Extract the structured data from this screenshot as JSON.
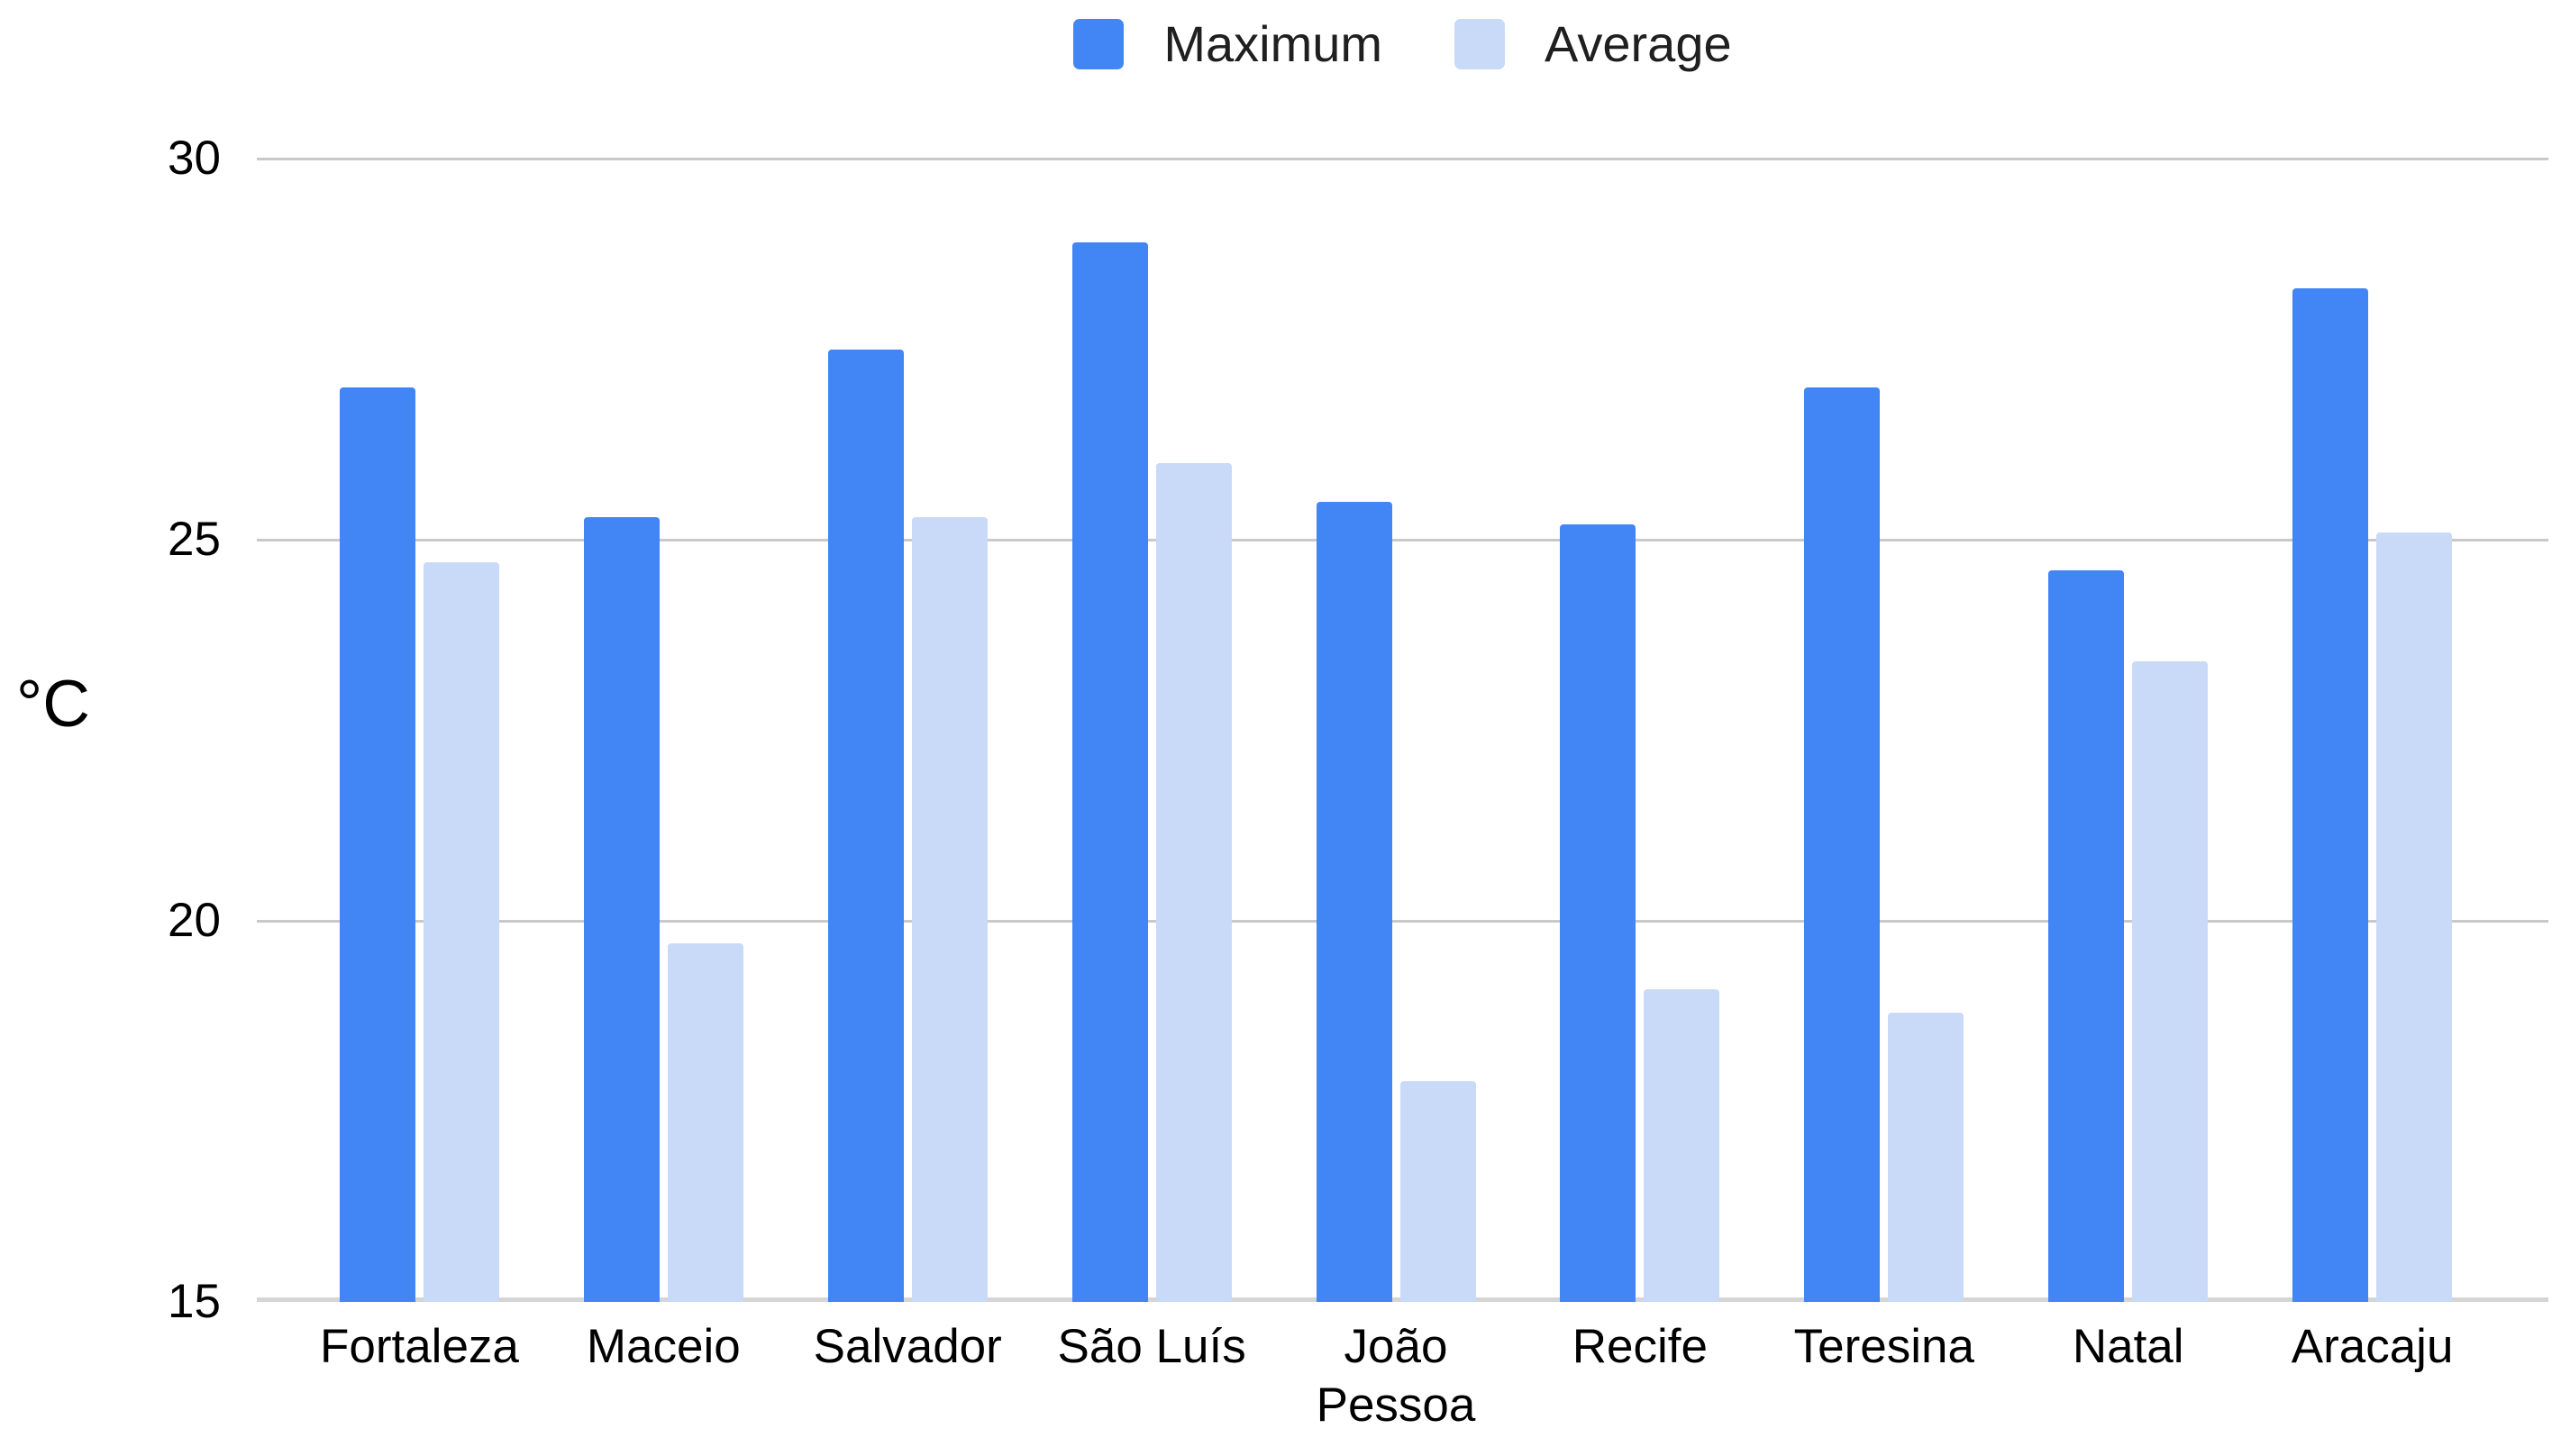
{
  "chart_data": {
    "type": "bar",
    "title": "",
    "categories": [
      "Fortaleza",
      "Maceio",
      "Salvador",
      "São Luís",
      "João\nPessoa",
      "Recife",
      "Teresina",
      "Natal",
      "Aracaju"
    ],
    "series": [
      {
        "name": "Maximum",
        "color": "#4285F4",
        "values": [
          27.0,
          25.3,
          27.5,
          28.9,
          25.5,
          25.2,
          27.0,
          24.6,
          28.3
        ]
      },
      {
        "name": "Average",
        "color": "#C9DAF8",
        "values": [
          24.7,
          19.7,
          25.3,
          26.0,
          17.9,
          19.1,
          18.8,
          23.4,
          25.1
        ]
      }
    ],
    "ylabel": "°C",
    "ylim": [
      15,
      30
    ],
    "y_ticks": [
      30,
      25,
      20,
      15
    ],
    "grid": true,
    "legend_position": "top",
    "gridline_color": "#C9C9C9",
    "baseline_color": "#D5D5D5",
    "text_color": "#1F1F1F"
  }
}
